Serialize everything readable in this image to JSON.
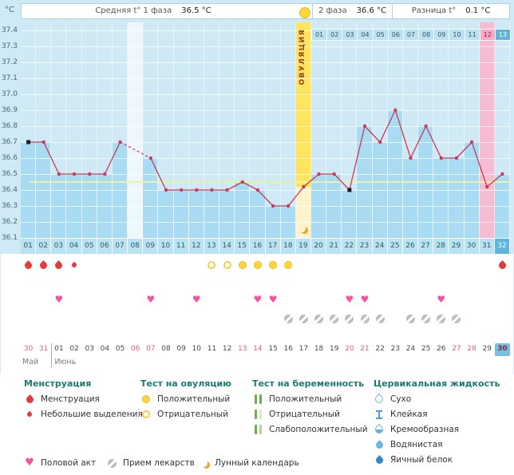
{
  "header": {
    "phase1_label": "Средняя t° 1 фаза",
    "phase1_value": "36.5 °C",
    "phase2_label": "2 фаза",
    "phase2_value": "36.6 °C",
    "diff_label": "Разница t°",
    "diff_value": "0.1 °C"
  },
  "chart_data": {
    "type": "line",
    "title": "Basal body temperature cycle chart",
    "ylabel": "°C",
    "ylim": [
      36.1,
      37.4
    ],
    "y_ticks": [
      "37.4",
      "37.3",
      "37.2",
      "37.1",
      "37.0",
      "36.9",
      "36.8",
      "36.7",
      "36.6",
      "36.5",
      "36.4",
      "36.3",
      "36.2",
      "36.1"
    ],
    "cycle_day_labels": [
      "01",
      "02",
      "03",
      "04",
      "05",
      "06",
      "07",
      "08",
      "09",
      "10",
      "11",
      "12",
      "13",
      "14",
      "15",
      "16",
      "17",
      "18",
      "19",
      "20",
      "21",
      "22",
      "23",
      "24",
      "25",
      "26",
      "27",
      "28",
      "29",
      "30",
      "31",
      "32"
    ],
    "temperatures": [
      36.7,
      36.7,
      36.5,
      36.5,
      36.5,
      36.5,
      36.7,
      null,
      36.6,
      36.4,
      36.4,
      36.4,
      36.4,
      36.4,
      36.45,
      36.4,
      36.3,
      36.3,
      36.42,
      36.5,
      36.5,
      36.4,
      36.8,
      36.7,
      36.9,
      36.6,
      36.8,
      36.6,
      36.6,
      36.7,
      36.42,
      36.5
    ],
    "coverline": 36.45,
    "ovulation_day": 19,
    "ovulation_label": "ОВУЛЯЦИЯ",
    "phase2_start_day": 20,
    "phase2_day_labels": [
      "01",
      "02",
      "03",
      "04",
      "05",
      "06",
      "07",
      "08",
      "09",
      "10",
      "11",
      "12",
      "13"
    ],
    "pink_highlight_day": 31,
    "current_day": 32,
    "missing_days": [
      8
    ],
    "marker_square_days": [
      1,
      22
    ],
    "moon_day": 19,
    "colors": {
      "line": "#c93a56",
      "bar": "#a9dcf2",
      "plot_bg": "#cfe9f5",
      "ovulation_column": "#ffe45e",
      "pink_column": "#f8bcd2",
      "coverline": "#e8f5a3",
      "today_highlight": "#5fb6dc"
    }
  },
  "events": {
    "menstruation": [
      {
        "day": 1,
        "size": "large"
      },
      {
        "day": 2,
        "size": "large"
      },
      {
        "day": 3,
        "size": "large"
      },
      {
        "day": 4,
        "size": "small"
      },
      {
        "day": 32,
        "size": "large"
      }
    ],
    "ovulation_tests": {
      "negative_days": [
        13,
        14
      ],
      "positive_days": [
        15,
        16,
        17,
        18
      ]
    },
    "intercourse_days": [
      3,
      9,
      12,
      16,
      17,
      22,
      23,
      28
    ],
    "medication_days": [
      18,
      19,
      20,
      21,
      22,
      23,
      24,
      26,
      27,
      28,
      29
    ]
  },
  "calendar": {
    "dates": [
      "30",
      "31",
      "01",
      "02",
      "03",
      "04",
      "05",
      "06",
      "07",
      "08",
      "09",
      "10",
      "11",
      "12",
      "13",
      "14",
      "15",
      "16",
      "17",
      "18",
      "19",
      "20",
      "21",
      "22",
      "23",
      "24",
      "25",
      "26",
      "27",
      "28",
      "29",
      "30"
    ],
    "weekend_indices": [
      0,
      1,
      7,
      8,
      14,
      15,
      21,
      22,
      28,
      29
    ],
    "today_index": 31,
    "months": [
      {
        "label": "Май",
        "span_days": 2
      },
      {
        "label": "Июнь",
        "span_days": 30
      }
    ]
  },
  "legend": {
    "sections": [
      {
        "title": "Менструация",
        "items": [
          {
            "icon": "menstruation",
            "label": "Менструация"
          },
          {
            "icon": "spotting",
            "label": "Небольшие выделения"
          }
        ]
      },
      {
        "title": "Тест на овуляцию",
        "items": [
          {
            "icon": "ovulation-positive",
            "label": "Положительный"
          },
          {
            "icon": "ovulation-negative",
            "label": "Отрицательный"
          }
        ]
      },
      {
        "title": "Тест на беременность",
        "items": [
          {
            "icon": "pregnancy-positive",
            "label": "Положительный"
          },
          {
            "icon": "pregnancy-negative",
            "label": "Отрицательный"
          },
          {
            "icon": "pregnancy-weak",
            "label": "Слабоположительный"
          }
        ]
      },
      {
        "title": "Цервикальная жидкость",
        "items": [
          {
            "icon": "cf-dry",
            "label": "Сухо"
          },
          {
            "icon": "cf-sticky",
            "label": "Клейкая"
          },
          {
            "icon": "cf-creamy",
            "label": "Кремообразная"
          },
          {
            "icon": "cf-watery",
            "label": "Водянистая"
          },
          {
            "icon": "cf-eggwhite",
            "label": "Яичный белок"
          }
        ]
      }
    ],
    "footer_items": [
      {
        "icon": "intercourse",
        "label": "Половой акт"
      },
      {
        "icon": "medication",
        "label": "Прием лекарств"
      },
      {
        "icon": "moon",
        "label": "Лунный календарь"
      }
    ]
  }
}
